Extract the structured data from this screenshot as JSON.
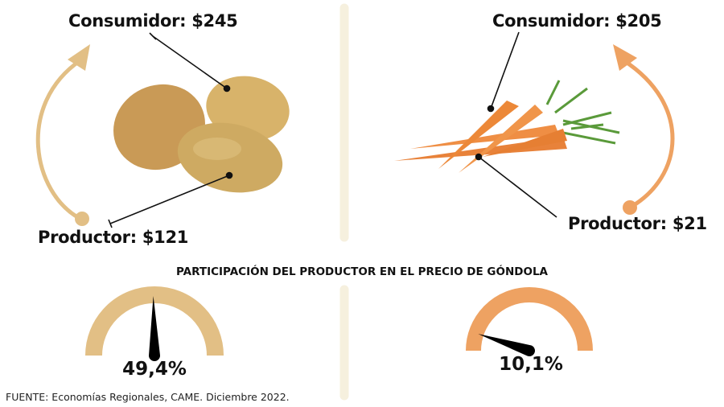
{
  "left_product": {
    "name_icon": "potato-icon",
    "consumer_label": "Consumidor: $245",
    "producer_label": "Productor: $121",
    "producer_share_label": "49,4%",
    "producer_share_percent": 49.4,
    "color": "#e2bf85"
  },
  "right_product": {
    "name_icon": "carrot-icon",
    "consumer_label": "Consumidor: $205",
    "producer_label": "Productor: $21",
    "producer_share_label": "10,1%",
    "producer_share_percent": 10.1,
    "color": "#eea262"
  },
  "section_title": "PARTICIPACIÓN DEL PRODUCTOR EN EL PRECIO DE GÓNDOLA",
  "source": "FUENTE: Economías Regionales, CAME. Diciembre 2022.",
  "divider_color": "#f6f0de"
}
